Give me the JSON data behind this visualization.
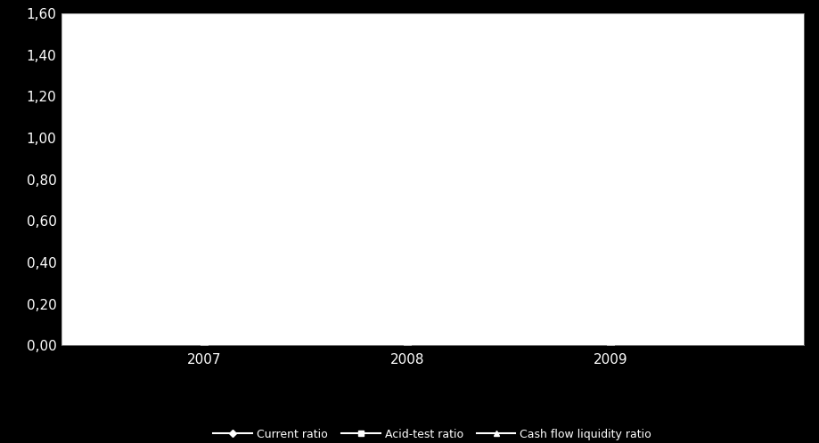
{
  "title": "",
  "x_labels": [
    "2007",
    "2008",
    "2009"
  ],
  "x_values": [
    2007,
    2008,
    2009
  ],
  "series": [
    {
      "name": "Current ratio",
      "values": [
        0.0,
        0.0,
        0.0
      ],
      "color": "#ffffff",
      "linewidth": 1.5,
      "marker": "D",
      "markersize": 4
    },
    {
      "name": "Acid-test ratio",
      "values": [
        0.0,
        0.0,
        0.0
      ],
      "color": "#ffffff",
      "linewidth": 1.5,
      "marker": "s",
      "markersize": 4
    },
    {
      "name": "Cash flow liquidity ratio",
      "values": [
        0.0,
        0.0,
        0.0
      ],
      "color": "#ffffff",
      "linewidth": 1.5,
      "marker": "^",
      "markersize": 4
    }
  ],
  "ylim": [
    0.0,
    1.6
  ],
  "yticks": [
    0.0,
    0.2,
    0.4,
    0.6,
    0.8,
    1.0,
    1.2,
    1.4,
    1.6
  ],
  "ytick_labels": [
    "0,00",
    "0,20",
    "0,40",
    "0,60",
    "0,80",
    "1,00",
    "1,20",
    "1,40",
    "1,60"
  ],
  "background_color": "#000000",
  "plot_bg_color": "#ffffff",
  "text_color": "#ffffff",
  "tick_color": "#ffffff",
  "legend_fontsize": 9,
  "tick_fontsize": 11
}
